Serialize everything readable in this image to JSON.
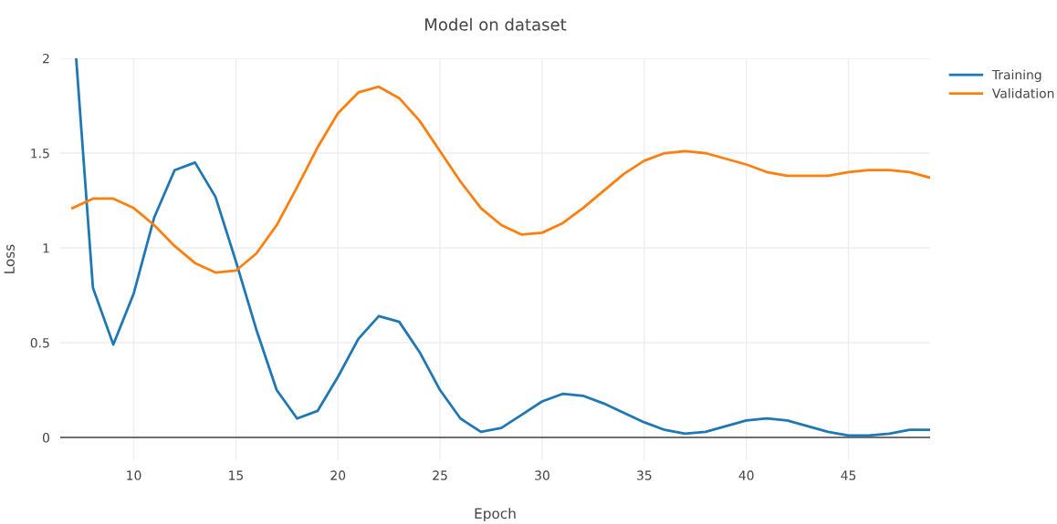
{
  "chart_data": {
    "type": "line",
    "title": "Model on dataset",
    "xlabel": "Epoch",
    "ylabel": "Loss",
    "x": [
      7,
      8,
      9,
      10,
      11,
      12,
      13,
      14,
      15,
      16,
      17,
      18,
      19,
      20,
      21,
      22,
      23,
      24,
      25,
      26,
      27,
      28,
      29,
      30,
      31,
      32,
      33,
      34,
      35,
      36,
      37,
      38,
      39,
      40,
      41,
      42,
      43,
      44,
      45,
      46,
      47,
      48,
      49
    ],
    "series": [
      {
        "name": "Training",
        "color": "#1f77b4",
        "x": [
          7.18,
          8,
          9,
          10,
          11,
          12,
          13,
          14,
          15,
          16,
          17,
          18,
          19,
          20,
          21,
          22,
          23,
          24,
          25,
          26,
          27,
          28,
          29,
          30,
          31,
          32,
          33,
          34,
          35,
          36,
          37,
          38,
          39,
          40,
          41,
          42,
          43,
          44,
          45,
          46,
          47,
          48,
          49
        ],
        "values": [
          2.0,
          0.79,
          0.49,
          0.76,
          1.16,
          1.41,
          1.45,
          1.27,
          0.93,
          0.57,
          0.25,
          0.1,
          0.14,
          0.32,
          0.52,
          0.64,
          0.61,
          0.45,
          0.25,
          0.1,
          0.03,
          0.05,
          0.12,
          0.19,
          0.23,
          0.22,
          0.18,
          0.13,
          0.08,
          0.04,
          0.02,
          0.03,
          0.06,
          0.09,
          0.1,
          0.09,
          0.06,
          0.03,
          0.01,
          0.01,
          0.02,
          0.04,
          0.04
        ]
      },
      {
        "name": "Validation",
        "color": "#ff7f0e",
        "values": [
          1.21,
          1.26,
          1.26,
          1.21,
          1.12,
          1.01,
          0.92,
          0.87,
          0.88,
          0.97,
          1.12,
          1.32,
          1.53,
          1.71,
          1.82,
          1.85,
          1.79,
          1.67,
          1.51,
          1.35,
          1.21,
          1.12,
          1.07,
          1.08,
          1.13,
          1.21,
          1.3,
          1.39,
          1.46,
          1.5,
          1.51,
          1.5,
          1.47,
          1.44,
          1.4,
          1.38,
          1.38,
          1.38,
          1.4,
          1.41,
          1.41,
          1.4,
          1.37
        ]
      }
    ],
    "xlim": [
      6.4,
      49
    ],
    "xticks": [
      10,
      15,
      20,
      25,
      30,
      35,
      40,
      45
    ],
    "ylim": [
      -0.12,
      2
    ],
    "yticks": [
      0,
      0.5,
      1,
      1.5,
      2
    ],
    "ref_lines": [
      {
        "axis": "y",
        "value": 0,
        "label": null,
        "color": "#444444"
      }
    ],
    "grid": true,
    "legend": "top right",
    "marker": "none",
    "line_style": "solid"
  }
}
